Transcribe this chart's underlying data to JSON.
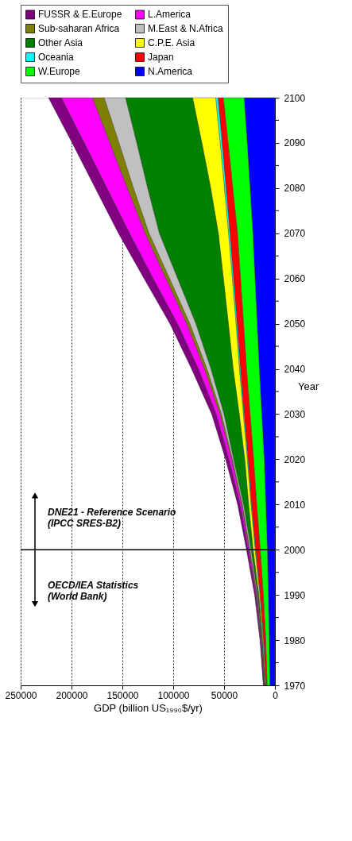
{
  "chart_data": {
    "type": "area",
    "stacked": true,
    "orientation": "horizontal",
    "xlabel": "GDP (billion US₁₉₉₀$/yr)",
    "ylabel": "Year",
    "x": [
      1970,
      1980,
      1990,
      2000,
      2010,
      2020,
      2030,
      2040,
      2050,
      2060,
      2070,
      2080,
      2090,
      2100
    ],
    "ylim": [
      1970,
      2100
    ],
    "yticks": [
      1970,
      {
        "value": 1975,
        "label": null
      },
      1980,
      {
        "value": 1985,
        "label": null
      },
      1990,
      {
        "value": 1995,
        "label": null
      },
      2000,
      {
        "value": 2005,
        "label": null
      },
      2010,
      {
        "value": 2015,
        "label": null
      },
      2020,
      {
        "value": 2025,
        "label": null
      },
      2030,
      {
        "value": 2035,
        "label": null
      },
      2040,
      {
        "value": 2045,
        "label": null
      },
      2050,
      {
        "value": 2055,
        "label": null
      },
      2060,
      {
        "value": 2065,
        "label": null
      },
      2070,
      {
        "value": 2075,
        "label": null
      },
      2080,
      {
        "value": 2085,
        "label": null
      },
      2090,
      {
        "value": 2095,
        "label": null
      },
      2100
    ],
    "xlim": [
      250000,
      0
    ],
    "xticks": [
      250000,
      200000,
      150000,
      100000,
      50000,
      0
    ],
    "grid": "x",
    "legend": "top",
    "series": [
      {
        "name": "N.America",
        "color": "#0000ff",
        "values": [
          5000,
          5600,
          6500,
          7500,
          9000,
          10500,
          13000,
          15400,
          17500,
          19600,
          21700,
          24500,
          27300,
          30300
        ]
      },
      {
        "name": "W.Europe",
        "color": "#00ff00",
        "values": [
          2800,
          3500,
          5000,
          7000,
          9000,
          10500,
          11500,
          12600,
          13400,
          14300,
          15200,
          17000,
          18800,
          20500
        ]
      },
      {
        "name": "Japan",
        "color": "#ff0000",
        "values": [
          1200,
          2000,
          3000,
          4500,
          5000,
          5500,
          5800,
          6000,
          6300,
          6800,
          7400,
          6600,
          5900,
          5200
        ]
      },
      {
        "name": "Oceania",
        "color": "#00ffff",
        "values": [
          300,
          400,
          400,
          500,
          600,
          700,
          800,
          1000,
          1100,
          1200,
          1400,
          1600,
          1900,
          2300
        ]
      },
      {
        "name": "C.P.E. Asia",
        "color": "#ffff00",
        "values": [
          500,
          700,
          1000,
          2000,
          2300,
          2500,
          4000,
          6100,
          7500,
          8800,
          10000,
          13500,
          18000,
          22700
        ]
      },
      {
        "name": "Other Asia",
        "color": "#008000",
        "values": [
          500,
          800,
          1200,
          2000,
          5000,
          11000,
          15000,
          21900,
          32000,
          45000,
          58000,
          62000,
          64000,
          66000
        ]
      },
      {
        "name": "M.East & N.Africa",
        "color": "#c0c0c0",
        "values": [
          300,
          400,
          600,
          1200,
          1200,
          1200,
          2500,
          3900,
          6000,
          8000,
          10200,
          14000,
          17500,
          21000
        ]
      },
      {
        "name": "Sub-saharan Africa",
        "color": "#808000",
        "values": [
          200,
          300,
          400,
          600,
          700,
          800,
          1600,
          2500,
          3000,
          3500,
          3800,
          6000,
          9000,
          11500
        ]
      },
      {
        "name": "L.America",
        "color": "#ff00ff",
        "values": [
          300,
          500,
          700,
          1000,
          1400,
          2500,
          3500,
          5800,
          9000,
          12500,
          15200,
          20000,
          25000,
          30500
        ]
      },
      {
        "name": "FUSSR & E.Europe",
        "color": "#800080",
        "values": [
          300,
          500,
          1200,
          1700,
          2500,
          3300,
          4500,
          6800,
          7500,
          9000,
          11000,
          11500,
          12000,
          12700
        ]
      }
    ],
    "ref_lines": [
      {
        "axis": "y",
        "value": 2000,
        "color": "#000000"
      }
    ],
    "annotations": [
      "OECD/IEA Statistics\n(World Bank)",
      "DNE21 - Reference Scenario\n(IPCC SRES-B2)"
    ]
  }
}
